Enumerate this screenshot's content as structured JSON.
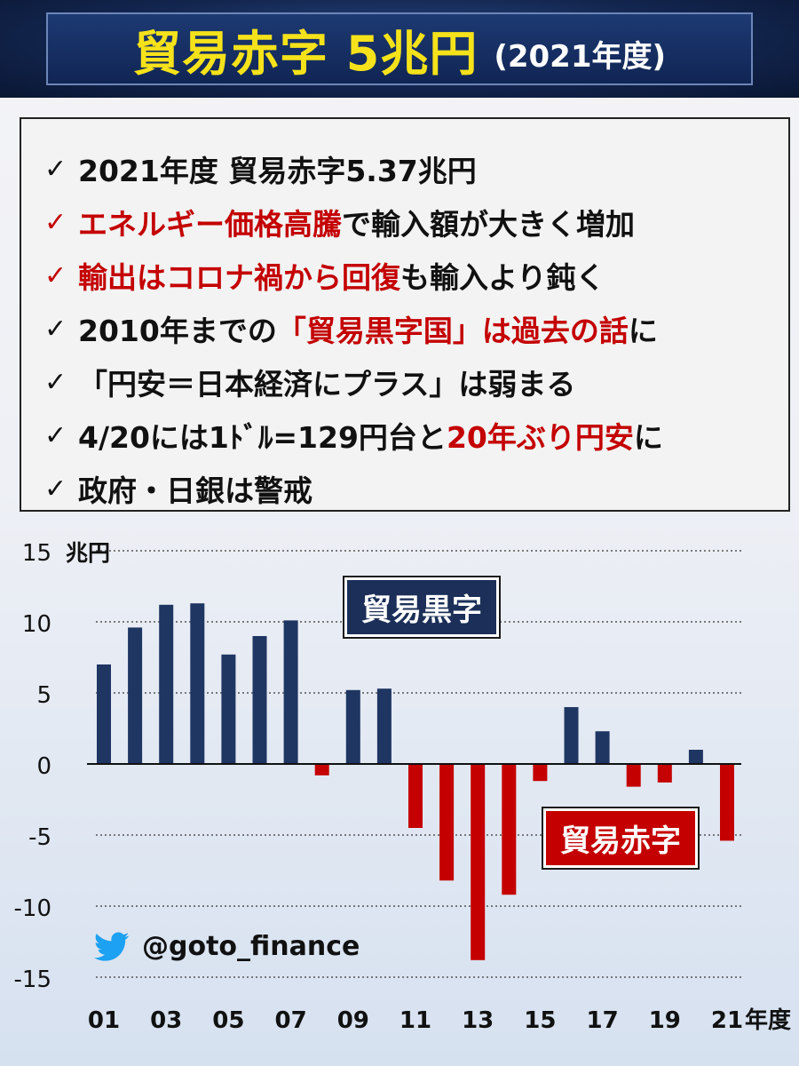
{
  "header": {
    "title": "貿易赤字 5兆円",
    "subtitle": "(2021年度)"
  },
  "summary": {
    "items": [
      {
        "check": "✓",
        "parts": [
          {
            "text": "2021年度 貿易赤字5.37兆円",
            "color": "black"
          }
        ]
      },
      {
        "check": "✓",
        "check_color": "red",
        "parts": [
          {
            "text": "エネルギー価格高騰",
            "color": "red"
          },
          {
            "text": "で輸入額が大きく増加",
            "color": "black"
          }
        ]
      },
      {
        "check": "✓",
        "check_color": "red",
        "parts": [
          {
            "text": "輸出はコロナ禍から回復",
            "color": "red"
          },
          {
            "text": "も輸入より鈍く",
            "color": "black"
          }
        ]
      },
      {
        "check": "✓",
        "parts": [
          {
            "text": "2010年までの",
            "color": "black"
          },
          {
            "text": "「貿易黒字国」は過去の話",
            "color": "red"
          },
          {
            "text": "に",
            "color": "black"
          }
        ]
      },
      {
        "check": "✓",
        "parts": [
          {
            "text": "「円安＝日本経済にプラス」は弱まる",
            "color": "black"
          }
        ]
      },
      {
        "check": "✓",
        "parts": [
          {
            "text": "4/20には1ﾄﾞﾙ=129円台と",
            "color": "black"
          },
          {
            "text": "20年ぶり円安",
            "color": "red"
          },
          {
            "text": "に",
            "color": "black"
          }
        ]
      },
      {
        "check": "✓",
        "parts": [
          {
            "text": "政府・日銀は警戒",
            "color": "black"
          }
        ]
      }
    ]
  },
  "chart_data": {
    "type": "bar",
    "categories": [
      "01",
      "02",
      "03",
      "04",
      "05",
      "06",
      "07",
      "08",
      "09",
      "10",
      "11",
      "12",
      "13",
      "14",
      "15",
      "16",
      "17",
      "18",
      "19",
      "20",
      "21"
    ],
    "x_tick_labels": [
      "01",
      "03",
      "05",
      "07",
      "09",
      "11",
      "13",
      "15",
      "17",
      "19",
      "21"
    ],
    "x_unit": "年度",
    "values": [
      7.0,
      9.6,
      11.2,
      11.3,
      7.7,
      9.0,
      10.1,
      -0.8,
      5.2,
      5.3,
      -4.5,
      -8.2,
      -13.8,
      -9.2,
      -1.2,
      4.0,
      2.3,
      -1.6,
      -1.3,
      1.0,
      -5.4
    ],
    "ylim": [
      -15,
      15
    ],
    "y_ticks": [
      15,
      10,
      5,
      0,
      -5,
      -10,
      -15
    ],
    "y_unit": "兆円",
    "grid": "dotted horizontal",
    "colors": {
      "positive": "#1f3663",
      "negative": "#c40000"
    },
    "annotations": {
      "surplus": "貿易黒字",
      "deficit": "貿易赤字"
    }
  },
  "footer": {
    "handle": "@goto_finance",
    "icon": "twitter-bird-icon",
    "icon_color": "#1da1f2"
  }
}
